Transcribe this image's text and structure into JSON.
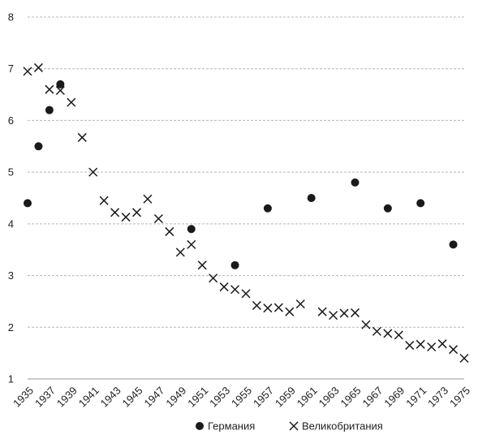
{
  "chart_data": {
    "type": "scatter",
    "title": "",
    "xlabel": "",
    "ylabel": "",
    "xlim": [
      1935,
      1975
    ],
    "ylim": [
      1,
      8
    ],
    "x_ticks": [
      1935,
      1937,
      1939,
      1941,
      1943,
      1945,
      1947,
      1949,
      1951,
      1953,
      1955,
      1957,
      1959,
      1961,
      1963,
      1965,
      1967,
      1969,
      1971,
      1973,
      1975
    ],
    "y_ticks": [
      1,
      2,
      3,
      4,
      5,
      6,
      7,
      8
    ],
    "grid": "horizontal",
    "legend_position": "bottom",
    "series": [
      {
        "name": "Германия",
        "marker": "dot",
        "color": "#1a1a1a",
        "points": [
          {
            "x": 1935,
            "y": 4.4
          },
          {
            "x": 1936,
            "y": 5.5
          },
          {
            "x": 1937,
            "y": 6.2
          },
          {
            "x": 1938,
            "y": 6.7
          },
          {
            "x": 1950,
            "y": 3.9
          },
          {
            "x": 1954,
            "y": 3.2
          },
          {
            "x": 1957,
            "y": 4.3
          },
          {
            "x": 1961,
            "y": 4.5
          },
          {
            "x": 1965,
            "y": 4.8
          },
          {
            "x": 1968,
            "y": 4.3
          },
          {
            "x": 1971,
            "y": 4.4
          },
          {
            "x": 1974,
            "y": 3.6
          }
        ]
      },
      {
        "name": "Великобритания",
        "marker": "cross",
        "color": "#1a1a1a",
        "points": [
          {
            "x": 1935,
            "y": 6.95
          },
          {
            "x": 1936,
            "y": 7.02
          },
          {
            "x": 1937,
            "y": 6.6
          },
          {
            "x": 1938,
            "y": 6.58
          },
          {
            "x": 1939,
            "y": 6.35
          },
          {
            "x": 1940,
            "y": 5.67
          },
          {
            "x": 1941,
            "y": 5.0
          },
          {
            "x": 1942,
            "y": 4.45
          },
          {
            "x": 1943,
            "y": 4.22
          },
          {
            "x": 1944,
            "y": 4.13
          },
          {
            "x": 1945,
            "y": 4.22
          },
          {
            "x": 1946,
            "y": 4.48
          },
          {
            "x": 1947,
            "y": 4.1
          },
          {
            "x": 1948,
            "y": 3.85
          },
          {
            "x": 1949,
            "y": 3.45
          },
          {
            "x": 1950,
            "y": 3.6
          },
          {
            "x": 1951,
            "y": 3.2
          },
          {
            "x": 1952,
            "y": 2.95
          },
          {
            "x": 1953,
            "y": 2.78
          },
          {
            "x": 1954,
            "y": 2.73
          },
          {
            "x": 1955,
            "y": 2.65
          },
          {
            "x": 1956,
            "y": 2.42
          },
          {
            "x": 1957,
            "y": 2.37
          },
          {
            "x": 1958,
            "y": 2.38
          },
          {
            "x": 1959,
            "y": 2.3
          },
          {
            "x": 1960,
            "y": 2.45
          },
          {
            "x": 1962,
            "y": 2.3
          },
          {
            "x": 1963,
            "y": 2.23
          },
          {
            "x": 1964,
            "y": 2.27
          },
          {
            "x": 1965,
            "y": 2.28
          },
          {
            "x": 1966,
            "y": 2.05
          },
          {
            "x": 1967,
            "y": 1.92
          },
          {
            "x": 1968,
            "y": 1.88
          },
          {
            "x": 1969,
            "y": 1.85
          },
          {
            "x": 1970,
            "y": 1.65
          },
          {
            "x": 1971,
            "y": 1.67
          },
          {
            "x": 1972,
            "y": 1.62
          },
          {
            "x": 1973,
            "y": 1.68
          },
          {
            "x": 1974,
            "y": 1.57
          },
          {
            "x": 1975,
            "y": 1.4
          }
        ]
      }
    ]
  }
}
